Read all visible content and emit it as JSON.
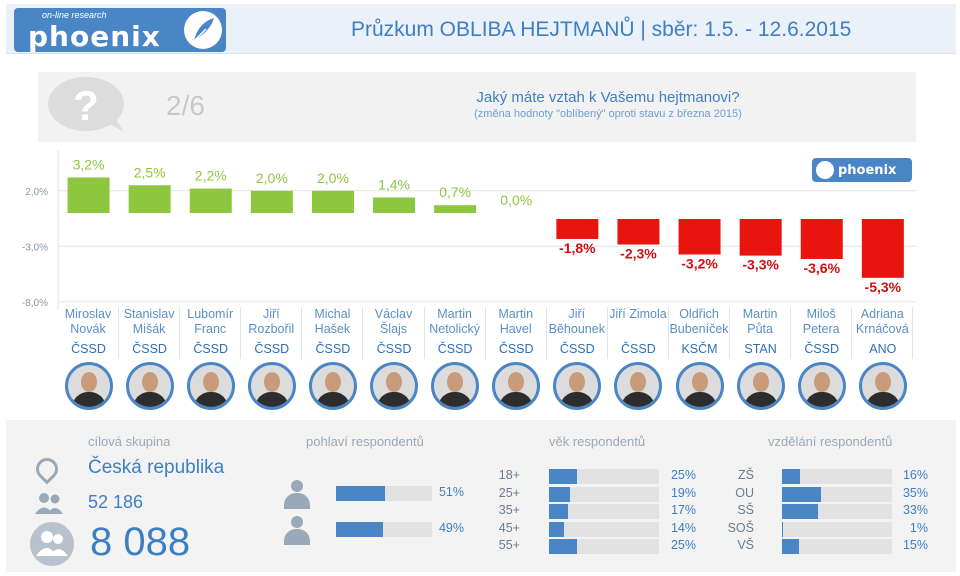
{
  "header": {
    "logo_small": "on-line research",
    "logo_text": "phoenix",
    "title": "Průzkum OBLIBA HEJTMANŮ | sběr: 1.5. - 12.6.2015"
  },
  "question": {
    "number": "2/6",
    "text": "Jaký máte vztah k Vašemu hejtmanovi?",
    "subtext": "(změna hodnoty \"oblíbený\" oproti stavu z března 2015)"
  },
  "colors": {
    "positive": "#8dc63f",
    "negative": "#e8150e",
    "accent": "#4a86c5"
  },
  "chart_data": {
    "type": "bar",
    "categories": [
      "Miroslav Novák",
      "Stanislav Mišák",
      "Lubomír Franc",
      "Jiří Rozbořil",
      "Michal Hašek",
      "Václav Šlajs",
      "Martin Netolický",
      "Martin Havel",
      "Jiří Běhounek",
      "Jiří Zimola",
      "Oldřich Bubeníček",
      "Martin Půta",
      "Miloš Petera",
      "Adriana Krnáčová"
    ],
    "values": [
      3.2,
      2.5,
      2.2,
      2.0,
      2.0,
      1.4,
      0.7,
      0.0,
      -1.8,
      -2.3,
      -3.2,
      -3.3,
      -3.6,
      -5.3
    ],
    "value_labels": [
      "3,2%",
      "2,5%",
      "2,2%",
      "2,0%",
      "2,0%",
      "1,4%",
      "0,7%",
      "0,0%",
      "-1,8%",
      "-2,3%",
      "-3,2%",
      "-3,3%",
      "-3,6%",
      "-5,3%"
    ],
    "yticks": [
      2.0,
      -3.0,
      -8.0
    ],
    "ytick_labels": [
      "2,0%",
      "-3,0%",
      "-8,0%"
    ],
    "ylim": [
      -8.0,
      4.0
    ],
    "grid": true
  },
  "candidates": [
    {
      "first": "Miroslav",
      "last": "Novák",
      "party": "ČSSD"
    },
    {
      "first": "Stanislav",
      "last": "Mišák",
      "party": "ČSSD"
    },
    {
      "first": "Lubomír",
      "last": "Franc",
      "party": "ČSSD"
    },
    {
      "first": "Jiří",
      "last": "Rozbořil",
      "party": "ČSSD"
    },
    {
      "first": "Michal",
      "last": "Hašek",
      "party": "ČSSD"
    },
    {
      "first": "Václav",
      "last": "Šlajs",
      "party": "ČSSD"
    },
    {
      "first": "Martin",
      "last": "Netolický",
      "party": "ČSSD"
    },
    {
      "first": "Martin",
      "last": "Havel",
      "party": "ČSSD"
    },
    {
      "first": "Jiří",
      "last": "Běhounek",
      "party": "ČSSD"
    },
    {
      "first": "Jiří Zimola",
      "last": "",
      "party": "ČSSD"
    },
    {
      "first": "Oldřich",
      "last": "Bubeníček",
      "party": "KSČM"
    },
    {
      "first": "Martin",
      "last": "Půta",
      "party": "STAN"
    },
    {
      "first": "Miloš",
      "last": "Petera",
      "party": "ČSSD"
    },
    {
      "first": "Adriana",
      "last": "Krnáčová",
      "party": "ANO"
    }
  ],
  "target": {
    "title": "cílová skupina",
    "country": "Česká republika",
    "respondents": "52 186",
    "sample": "8 088"
  },
  "gender": {
    "title": "pohlaví respondentů",
    "rows": [
      {
        "label": "",
        "value": 51,
        "pct": "51%"
      },
      {
        "label": "",
        "value": 49,
        "pct": "49%"
      }
    ]
  },
  "age": {
    "title": "věk respondentů",
    "rows": [
      {
        "label": "18+",
        "value": 25,
        "pct": "25%"
      },
      {
        "label": "25+",
        "value": 19,
        "pct": "19%"
      },
      {
        "label": "35+",
        "value": 17,
        "pct": "17%"
      },
      {
        "label": "45+",
        "value": 14,
        "pct": "14%"
      },
      {
        "label": "55+",
        "value": 25,
        "pct": "25%"
      }
    ]
  },
  "education": {
    "title": "vzdělání respondentů",
    "rows": [
      {
        "label": "ZŠ",
        "value": 16,
        "pct": "16%"
      },
      {
        "label": "OU",
        "value": 35,
        "pct": "35%"
      },
      {
        "label": "SŠ",
        "value": 33,
        "pct": "33%"
      },
      {
        "label": "SOŠ",
        "value": 1,
        "pct": "1%"
      },
      {
        "label": "VŠ",
        "value": 15,
        "pct": "15%"
      }
    ]
  }
}
